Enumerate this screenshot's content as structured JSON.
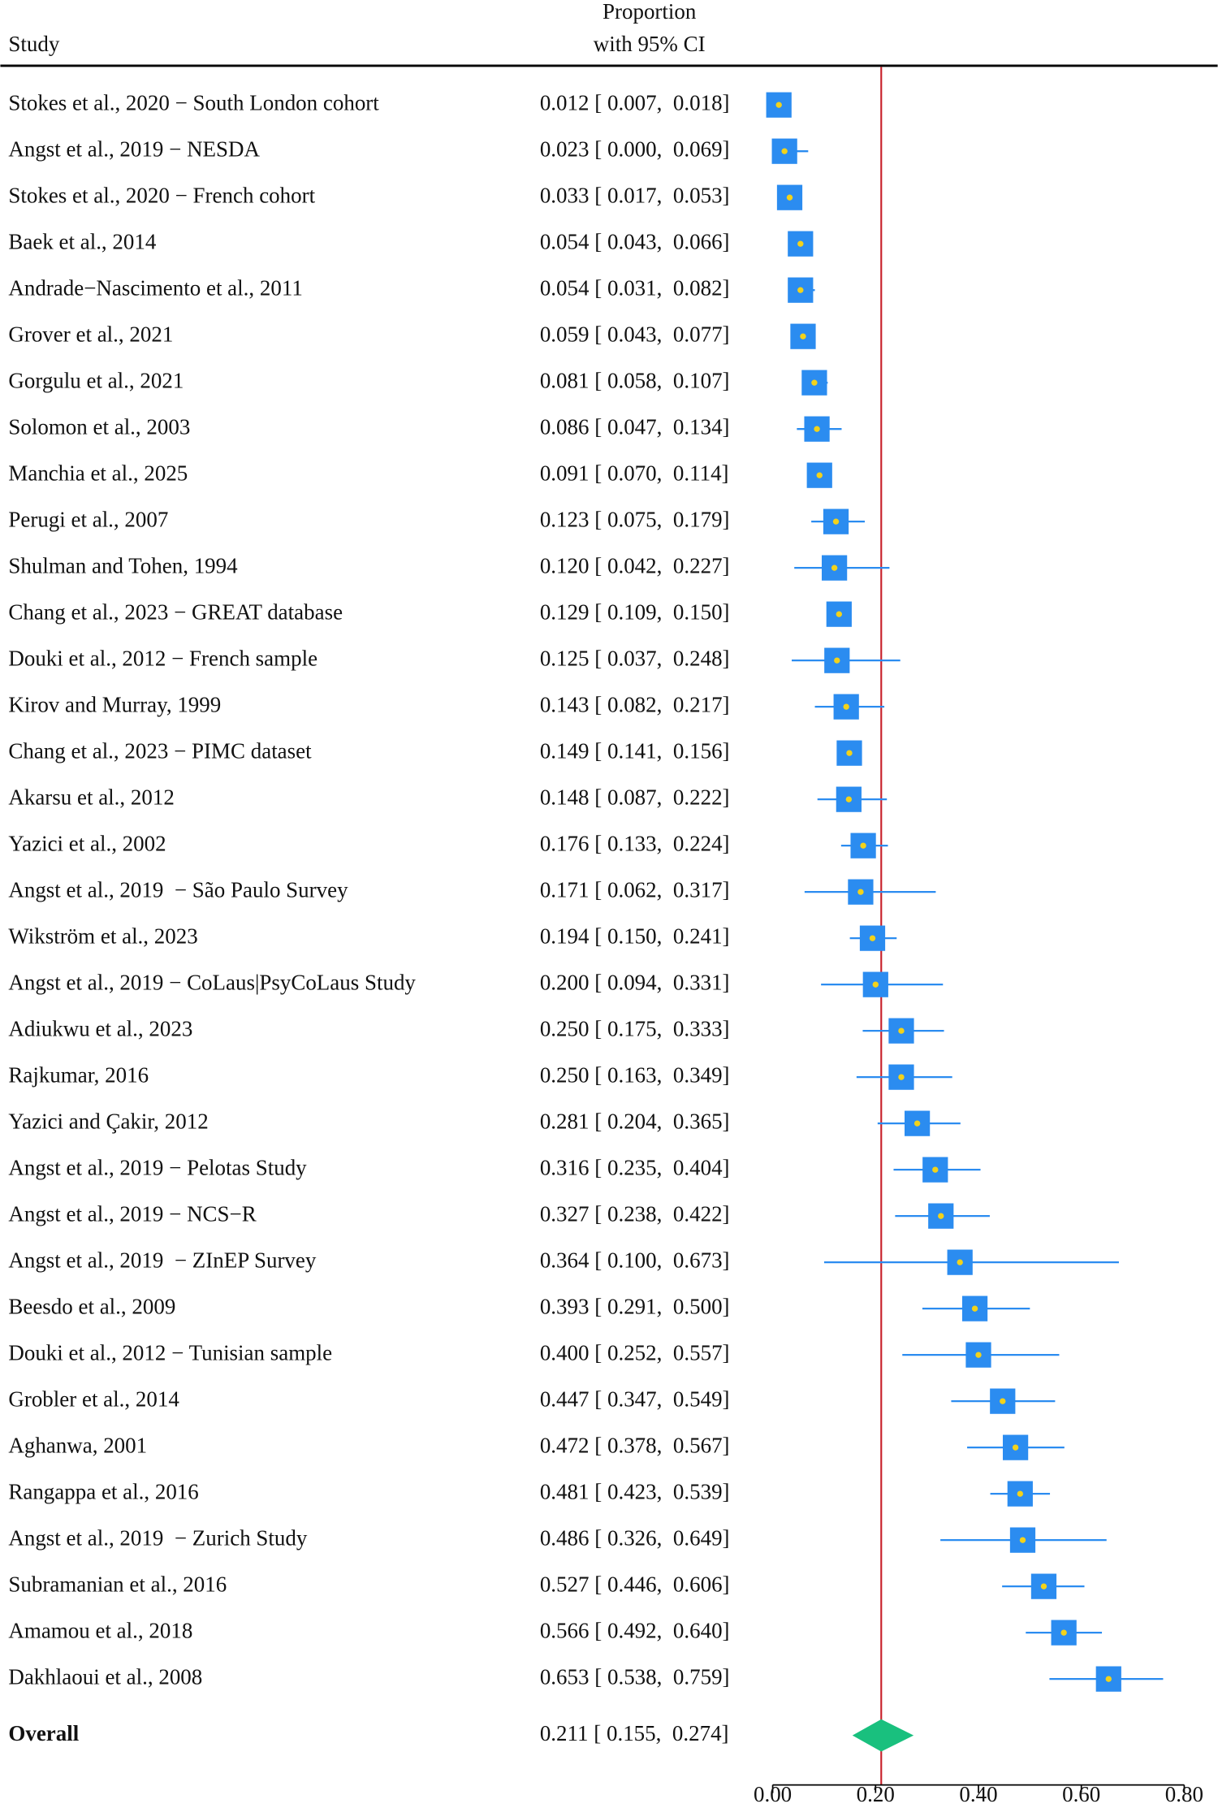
{
  "chart_data": {
    "type": "forest",
    "column_headers": {
      "study": "Study",
      "estimate": [
        "Proportion",
        "with 95% CI"
      ]
    },
    "studies": [
      "Stokes et al., 2020 − South London cohort",
      "Angst et al., 2019 − NESDA",
      "Stokes et al., 2020 − French cohort",
      "Baek et al., 2014",
      "Andrade−Nascimento et al., 2011",
      "Grover et al., 2021",
      "Gorgulu et al., 2021",
      "Solomon et al., 2003",
      "Manchia et al., 2025",
      "Perugi et al., 2007",
      "Shulman and Tohen, 1994",
      "Chang et al., 2023 − GREAT database",
      "Douki et al., 2012 − French sample",
      "Kirov and Murray, 1999",
      "Chang et al., 2023 − PIMC dataset",
      "Akarsu et al., 2012",
      "Yazici et al., 2002",
      "Angst et al., 2019  − São Paulo Survey",
      "Wikström et al., 2023",
      "Angst et al., 2019 − CoLaus|PsyCoLaus Study",
      "Adiukwu et al., 2023",
      "Rajkumar, 2016",
      "Yazici and Çakir, 2012",
      "Angst et al., 2019 − Pelotas Study",
      "Angst et al., 2019 − NCS−R",
      "Angst et al., 2019  − ZInEP Survey",
      "Beesdo et al., 2009",
      "Douki et al., 2012 − Tunisian sample",
      "Grobler et al., 2014",
      "Aghanwa, 2001",
      "Rangappa et al., 2016",
      "Angst et al., 2019  − Zurich Study",
      "Subramanian et al., 2016",
      "Amamou et al., 2018",
      "Dakhlaoui et al., 2008"
    ],
    "estimates": [
      0.012,
      0.023,
      0.033,
      0.054,
      0.054,
      0.059,
      0.081,
      0.086,
      0.091,
      0.123,
      0.12,
      0.129,
      0.125,
      0.143,
      0.149,
      0.148,
      0.176,
      0.171,
      0.194,
      0.2,
      0.25,
      0.25,
      0.281,
      0.316,
      0.327,
      0.364,
      0.393,
      0.4,
      0.447,
      0.472,
      0.481,
      0.486,
      0.527,
      0.566,
      0.653
    ],
    "lower": [
      0.007,
      0.0,
      0.017,
      0.043,
      0.031,
      0.043,
      0.058,
      0.047,
      0.07,
      0.075,
      0.042,
      0.109,
      0.037,
      0.082,
      0.141,
      0.087,
      0.133,
      0.062,
      0.15,
      0.094,
      0.175,
      0.163,
      0.204,
      0.235,
      0.238,
      0.1,
      0.291,
      0.252,
      0.347,
      0.378,
      0.423,
      0.326,
      0.446,
      0.492,
      0.538
    ],
    "upper": [
      0.018,
      0.069,
      0.053,
      0.066,
      0.082,
      0.077,
      0.107,
      0.134,
      0.114,
      0.179,
      0.227,
      0.15,
      0.248,
      0.217,
      0.156,
      0.222,
      0.224,
      0.317,
      0.241,
      0.331,
      0.333,
      0.349,
      0.365,
      0.404,
      0.422,
      0.673,
      0.5,
      0.557,
      0.549,
      0.567,
      0.539,
      0.649,
      0.606,
      0.64,
      0.759
    ],
    "ci_labels": [
      "0.012 [ 0.007,  0.018]",
      "0.023 [ 0.000,  0.069]",
      "0.033 [ 0.017,  0.053]",
      "0.054 [ 0.043,  0.066]",
      "0.054 [ 0.031,  0.082]",
      "0.059 [ 0.043,  0.077]",
      "0.081 [ 0.058,  0.107]",
      "0.086 [ 0.047,  0.134]",
      "0.091 [ 0.070,  0.114]",
      "0.123 [ 0.075,  0.179]",
      "0.120 [ 0.042,  0.227]",
      "0.129 [ 0.109,  0.150]",
      "0.125 [ 0.037,  0.248]",
      "0.143 [ 0.082,  0.217]",
      "0.149 [ 0.141,  0.156]",
      "0.148 [ 0.087,  0.222]",
      "0.176 [ 0.133,  0.224]",
      "0.171 [ 0.062,  0.317]",
      "0.194 [ 0.150,  0.241]",
      "0.200 [ 0.094,  0.331]",
      "0.250 [ 0.175,  0.333]",
      "0.250 [ 0.163,  0.349]",
      "0.281 [ 0.204,  0.365]",
      "0.316 [ 0.235,  0.404]",
      "0.327 [ 0.238,  0.422]",
      "0.364 [ 0.100,  0.673]",
      "0.393 [ 0.291,  0.500]",
      "0.400 [ 0.252,  0.557]",
      "0.447 [ 0.347,  0.549]",
      "0.472 [ 0.378,  0.567]",
      "0.481 [ 0.423,  0.539]",
      "0.486 [ 0.326,  0.649]",
      "0.527 [ 0.446,  0.606]",
      "0.566 [ 0.492,  0.640]",
      "0.653 [ 0.538,  0.759]"
    ],
    "overall": {
      "label": "Overall",
      "estimate": 0.211,
      "lower": 0.155,
      "upper": 0.274,
      "ci_label": "0.211 [ 0.155,  0.274]"
    },
    "xlim": [
      0,
      0.8
    ],
    "xticks": [
      {
        "value": 0,
        "label": "0.00"
      },
      {
        "value": 0.2,
        "label": "0.20"
      },
      {
        "value": 0.4,
        "label": "0.40"
      },
      {
        "value": 0.6,
        "label": "0.60"
      },
      {
        "value": 0.8,
        "label": "0.80"
      }
    ],
    "box_color": "#2b8cf0",
    "ci_color": "#2b8cf0",
    "point_color": "#f2d21b",
    "reference_line_color": "#c8202a",
    "diamond_color": "#19c07e"
  }
}
